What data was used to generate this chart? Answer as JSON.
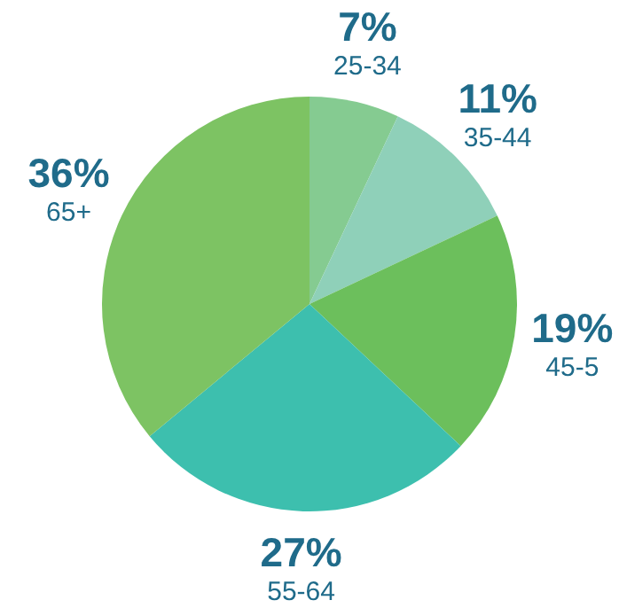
{
  "chart_data": {
    "type": "pie",
    "categories": [
      "25-34",
      "35-44",
      "45-5",
      "55-64",
      "65+"
    ],
    "values": [
      7,
      11,
      19,
      27,
      36
    ],
    "value_labels": [
      "7%",
      "11%",
      "19%",
      "27%",
      "36%"
    ],
    "colors": [
      "#85cb91",
      "#8fd0b9",
      "#6cbf5c",
      "#3dbfae",
      "#7dc363"
    ]
  }
}
